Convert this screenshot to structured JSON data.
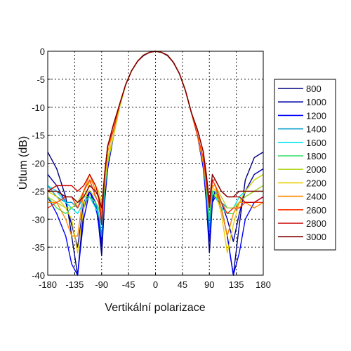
{
  "chart_data": {
    "type": "line",
    "title": "",
    "xlabel": "Vertikální polarizace",
    "ylabel": "Útlum (dB)",
    "xlim": [
      -180,
      180
    ],
    "ylim": [
      -40,
      0
    ],
    "grid": true,
    "legend_position": "right",
    "x_ticks": [
      -180,
      -135,
      -90,
      -45,
      0,
      45,
      90,
      135,
      180
    ],
    "x_tick_labels": [
      "-180",
      "-135",
      "-90",
      "-45",
      "0",
      "45",
      "90",
      "135",
      "180"
    ],
    "y_ticks": [
      0,
      -5,
      -10,
      -15,
      -20,
      -25,
      -30,
      -35,
      -40
    ],
    "y_tick_labels": [
      "0",
      "-5",
      "-10",
      "-15",
      "-20",
      "-25",
      "-30",
      "-35",
      "-40"
    ],
    "x": [
      -180,
      -165,
      -150,
      -140,
      -130,
      -120,
      -110,
      -100,
      -95,
      -90,
      -85,
      -80,
      -70,
      -60,
      -50,
      -40,
      -30,
      -20,
      -10,
      0,
      10,
      20,
      30,
      40,
      50,
      60,
      70,
      80,
      85,
      90,
      95,
      100,
      110,
      120,
      130,
      140,
      150,
      165,
      180
    ],
    "series": [
      {
        "name": "800",
        "color": "#000080",
        "values": [
          -18,
          -21,
          -26,
          -33,
          -41,
          -28,
          -25,
          -27,
          -31,
          -36.5,
          -27,
          -21,
          -15,
          -10,
          -6,
          -3.5,
          -1.8,
          -0.8,
          -0.2,
          0,
          -0.2,
          -0.8,
          -2,
          -4,
          -7,
          -11,
          -15,
          -20,
          -27,
          -36,
          -27,
          -25,
          -28,
          -33,
          -41,
          -31,
          -23,
          -19,
          -18
        ]
      },
      {
        "name": "1000",
        "color": "#0000a8",
        "values": [
          -22,
          -24,
          -27,
          -31,
          -35,
          -27,
          -25,
          -28,
          -30,
          -35,
          -26,
          -21,
          -15,
          -10,
          -6,
          -3.5,
          -1.8,
          -0.7,
          -0.2,
          0,
          -0.2,
          -0.7,
          -2,
          -4,
          -7,
          -11,
          -15,
          -20,
          -26,
          -34,
          -26,
          -25,
          -27,
          -30,
          -34,
          -29,
          -25,
          -22,
          -21
        ]
      },
      {
        "name": "1200",
        "color": "#0000ff",
        "values": [
          -26,
          -29,
          -33,
          -38,
          -40,
          -30,
          -25,
          -27,
          -31,
          -34,
          -26,
          -21,
          -15,
          -10,
          -6,
          -3.5,
          -1.8,
          -0.7,
          -0.2,
          0,
          -0.2,
          -0.7,
          -2,
          -4,
          -7,
          -11,
          -15,
          -21,
          -27,
          -34,
          -27,
          -26,
          -28,
          -33,
          -40,
          -36,
          -30,
          -27,
          -26
        ]
      },
      {
        "name": "1400",
        "color": "#0099cc",
        "values": [
          -24,
          -26,
          -27,
          -27,
          -28,
          -26,
          -26,
          -27,
          -29,
          -33,
          -25,
          -20,
          -15,
          -10,
          -6,
          -3.5,
          -1.8,
          -0.7,
          -0.2,
          0,
          -0.2,
          -0.7,
          -2,
          -4,
          -7,
          -11,
          -15,
          -20,
          -25,
          -32,
          -25,
          -25,
          -27,
          -28,
          -28,
          -27,
          -26,
          -25,
          -24
        ]
      },
      {
        "name": "1600",
        "color": "#00e5ee",
        "values": [
          -24,
          -25,
          -27,
          -28,
          -29,
          -27,
          -26,
          -28,
          -29,
          -31,
          -25,
          -20,
          -15,
          -10,
          -6,
          -3.5,
          -1.8,
          -0.7,
          -0.2,
          0,
          -0.2,
          -0.7,
          -2,
          -4,
          -7,
          -11,
          -15,
          -20,
          -25,
          -30,
          -25,
          -26,
          -28,
          -29,
          -28,
          -26,
          -25,
          -23,
          -22
        ]
      },
      {
        "name": "1800",
        "color": "#33dd66",
        "values": [
          -26,
          -28,
          -29,
          -28,
          -27,
          -26,
          -26,
          -27,
          -28,
          -30,
          -25,
          -20,
          -15,
          -10,
          -6,
          -3.5,
          -1.8,
          -0.7,
          -0.2,
          0,
          -0.2,
          -0.7,
          -2,
          -4,
          -7,
          -11,
          -15,
          -20,
          -25,
          -30,
          -25,
          -26,
          -27,
          -29,
          -29,
          -27,
          -26,
          -25,
          -25
        ]
      },
      {
        "name": "2000",
        "color": "#b5d62a",
        "values": [
          -26,
          -27,
          -28,
          -28,
          -27,
          -25,
          -25,
          -26,
          -26,
          -28,
          -24,
          -20,
          -15,
          -10,
          -6,
          -3.5,
          -1.8,
          -0.7,
          -0.2,
          0,
          -0.2,
          -0.7,
          -2,
          -4,
          -7,
          -11,
          -15,
          -20,
          -24,
          -28,
          -24,
          -24,
          -26,
          -28,
          -28,
          -27,
          -26,
          -25,
          -24
        ]
      },
      {
        "name": "2200",
        "color": "#e8d000",
        "values": [
          -25,
          -26,
          -28,
          -30,
          -36,
          -28,
          -23,
          -24,
          -25,
          -27,
          -23,
          -19,
          -15,
          -10,
          -6,
          -3.5,
          -1.8,
          -0.7,
          -0.2,
          0,
          -0.2,
          -0.7,
          -2,
          -4,
          -7,
          -11,
          -15,
          -20,
          -24,
          -27,
          -24,
          -25,
          -29,
          -36,
          -31,
          -27,
          -25,
          -23,
          -22
        ]
      },
      {
        "name": "2400",
        "color": "#ff8800",
        "values": [
          -27,
          -27,
          -30,
          -33,
          -33,
          -25,
          -22,
          -25,
          -26,
          -29,
          -23,
          -18,
          -14,
          -9.5,
          -6,
          -3.5,
          -1.8,
          -0.7,
          -0.2,
          0,
          -0.2,
          -0.7,
          -2,
          -4,
          -7,
          -11,
          -15,
          -20,
          -24,
          -28,
          -24,
          -24,
          -28,
          -33,
          -29,
          -27,
          -27,
          -28,
          -27
        ]
      },
      {
        "name": "2600",
        "color": "#ff3300",
        "values": [
          -28,
          -27,
          -26,
          -26,
          -28,
          -25,
          -23,
          -26,
          -27,
          -30,
          -22,
          -17,
          -14,
          -9.5,
          -6,
          -3.5,
          -1.8,
          -0.7,
          -0.2,
          0,
          -0.2,
          -0.7,
          -2,
          -4,
          -7,
          -11,
          -15,
          -19,
          -23,
          -27,
          -23,
          -24,
          -27,
          -29,
          -28,
          -28,
          -27,
          -27,
          -27
        ]
      },
      {
        "name": "2800",
        "color": "#cc0000",
        "values": [
          -25,
          -24,
          -24,
          -24,
          -25,
          -24,
          -22,
          -24,
          -26,
          -31,
          -22,
          -17,
          -13,
          -9.5,
          -6,
          -3.5,
          -1.8,
          -0.7,
          -0.2,
          0,
          -0.2,
          -0.7,
          -2,
          -4,
          -7,
          -11,
          -14,
          -18,
          -23,
          -28,
          -23,
          -23,
          -25,
          -26,
          -26,
          -26,
          -27,
          -27,
          -26
        ]
      },
      {
        "name": "3000",
        "color": "#800000",
        "values": [
          -25,
          -25,
          -26,
          -26,
          -27,
          -26,
          -24,
          -25,
          -26,
          -28,
          -22,
          -17,
          -13,
          -9.5,
          -6,
          -3.5,
          -1.8,
          -0.7,
          -0.2,
          0,
          -0.2,
          -0.7,
          -2,
          -4,
          -7,
          -11,
          -14,
          -18,
          -22,
          -27,
          -22,
          -23,
          -25,
          -26,
          -26,
          -25,
          -25,
          -25,
          -25
        ]
      }
    ]
  }
}
